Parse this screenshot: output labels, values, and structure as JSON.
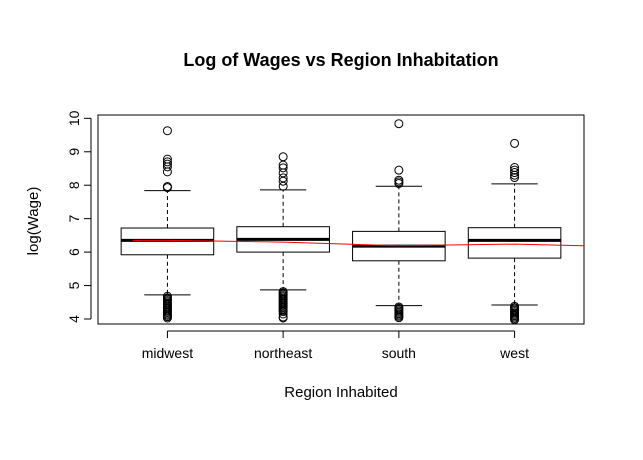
{
  "chart_data": {
    "type": "boxplot",
    "title": "Log of Wages vs Region Inhabitation",
    "xlabel": "Region Inhabited",
    "ylabel": "log(Wage)",
    "ylim": [
      3.85,
      10.1
    ],
    "yticks": [
      4,
      5,
      6,
      7,
      8,
      9,
      10
    ],
    "categories": [
      "midwest",
      "northeast",
      "south",
      "west"
    ],
    "boxes": [
      {
        "category": "midwest",
        "whisker_low": 4.72,
        "q1": 5.92,
        "median": 6.35,
        "q3": 6.72,
        "whisker_high": 7.84,
        "outliers_high": [
          7.93,
          7.96,
          8.4,
          8.55,
          8.63,
          8.7,
          8.78,
          9.63
        ],
        "outliers_low": [
          4.68,
          4.63,
          4.59,
          4.55,
          4.51,
          4.47,
          4.43,
          4.39,
          4.35,
          4.31,
          4.27,
          4.23,
          4.19,
          4.15,
          4.11,
          4.07,
          4.03
        ]
      },
      {
        "category": "northeast",
        "whisker_low": 4.87,
        "q1": 6.0,
        "median": 6.38,
        "q3": 6.76,
        "whisker_high": 7.86,
        "outliers_high": [
          7.97,
          8.12,
          8.22,
          8.37,
          8.52,
          8.6,
          8.85
        ],
        "outliers_low": [
          4.82,
          4.78,
          4.74,
          4.7,
          4.66,
          4.62,
          4.58,
          4.54,
          4.5,
          4.46,
          4.42,
          4.38,
          4.34,
          4.3,
          4.26,
          4.22,
          4.15,
          4.06,
          4.03
        ]
      },
      {
        "category": "south",
        "whisker_low": 4.4,
        "q1": 5.74,
        "median": 6.18,
        "q3": 6.62,
        "whisker_high": 7.97,
        "outliers_high": [
          8.05,
          8.1,
          8.15,
          8.45,
          9.84
        ],
        "outliers_low": [
          4.36,
          4.32,
          4.28,
          4.24,
          4.2,
          4.16,
          4.12,
          4.08,
          4.04
        ]
      },
      {
        "category": "west",
        "whisker_low": 4.42,
        "q1": 5.82,
        "median": 6.35,
        "q3": 6.73,
        "whisker_high": 8.04,
        "outliers_high": [
          8.23,
          8.3,
          8.38,
          8.45,
          8.53,
          9.25
        ],
        "outliers_low": [
          4.38,
          4.34,
          4.3,
          4.26,
          4.22,
          4.18,
          4.14,
          4.1,
          4.06,
          4.02,
          3.98
        ]
      }
    ],
    "trend_line": {
      "color": "#ff0000",
      "x": [
        0.7,
        1,
        2,
        3,
        4,
        5
      ],
      "y": [
        6.35,
        6.35,
        6.3,
        6.19,
        6.24,
        6.19
      ]
    }
  }
}
